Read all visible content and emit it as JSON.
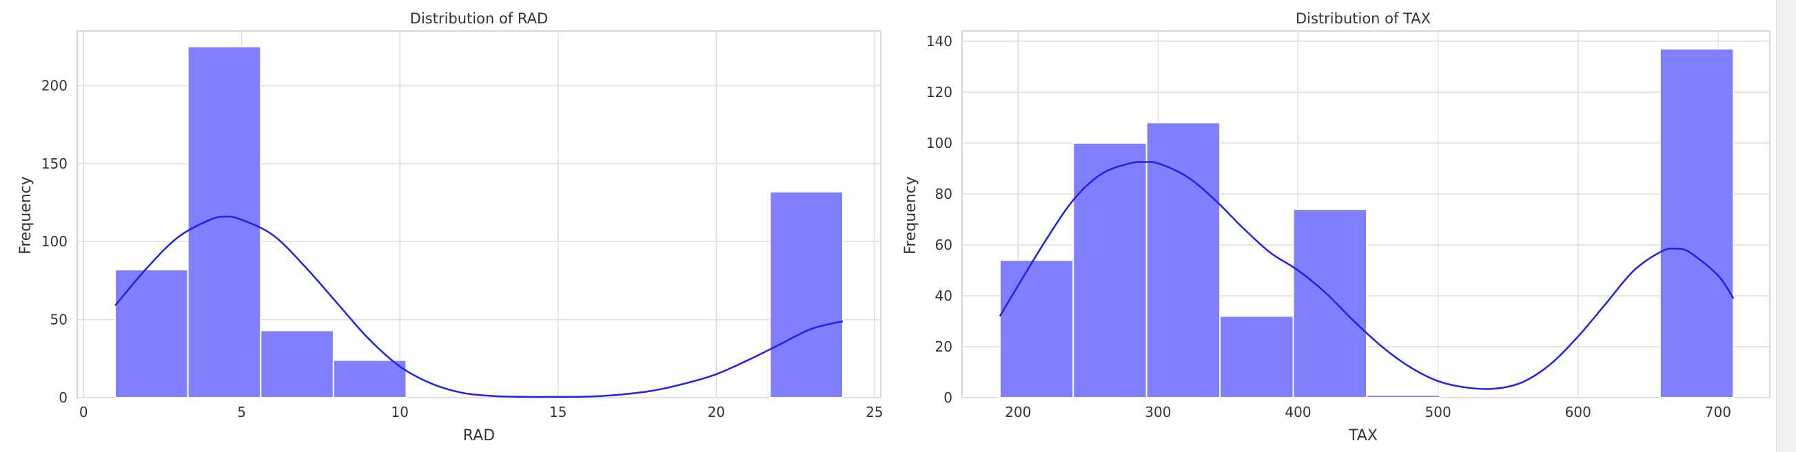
{
  "chart_data": [
    {
      "type": "bar",
      "subtype": "histogram with KDE",
      "title": "Distribution of RAD",
      "xlabel": "RAD",
      "ylabel": "Frequency",
      "xlim": [
        -0.2,
        25.2
      ],
      "ylim": [
        0,
        235
      ],
      "xticks": [
        0,
        5,
        10,
        15,
        20,
        25
      ],
      "yticks": [
        0,
        50,
        100,
        150,
        200
      ],
      "grid": true,
      "bar_color": "#7f7fff",
      "kde_color": "#2020ee",
      "bins": [
        {
          "x0": 1.0,
          "x1": 3.3,
          "count": 82
        },
        {
          "x0": 3.3,
          "x1": 5.6,
          "count": 225
        },
        {
          "x0": 5.6,
          "x1": 7.9,
          "count": 43
        },
        {
          "x0": 7.9,
          "x1": 10.2,
          "count": 24
        },
        {
          "x0": 10.2,
          "x1": 12.5,
          "count": 0
        },
        {
          "x0": 12.5,
          "x1": 14.8,
          "count": 0
        },
        {
          "x0": 14.8,
          "x1": 17.1,
          "count": 0
        },
        {
          "x0": 17.1,
          "x1": 19.4,
          "count": 0
        },
        {
          "x0": 19.4,
          "x1": 21.7,
          "count": 0
        },
        {
          "x0": 21.7,
          "x1": 24.0,
          "count": 132
        }
      ],
      "kde": {
        "x": [
          1,
          2,
          3,
          4,
          4.5,
          5,
          6,
          7,
          8,
          9,
          10,
          11,
          12,
          13,
          14,
          15,
          16,
          17,
          18,
          19,
          20,
          21,
          22,
          23,
          24
        ],
        "y": [
          59,
          83,
          103,
          114,
          116,
          114,
          104,
          84,
          61,
          38,
          20,
          9,
          3,
          1,
          0.5,
          0.5,
          0.7,
          2,
          4.5,
          9,
          15,
          24,
          34,
          44,
          49
        ]
      }
    },
    {
      "type": "bar",
      "subtype": "histogram with KDE",
      "title": "Distribution of TAX",
      "xlabel": "TAX",
      "ylabel": "Frequency",
      "xlim": [
        160,
        737
      ],
      "ylim": [
        0,
        144
      ],
      "xticks": [
        200,
        300,
        400,
        500,
        600,
        700
      ],
      "yticks": [
        0,
        20,
        40,
        60,
        80,
        100,
        120,
        140
      ],
      "grid": true,
      "bar_color": "#7f7fff",
      "kde_color": "#2020ee",
      "bins": [
        {
          "x0": 187.0,
          "x1": 239.4,
          "count": 54
        },
        {
          "x0": 239.4,
          "x1": 291.8,
          "count": 100
        },
        {
          "x0": 291.8,
          "x1": 344.2,
          "count": 108
        },
        {
          "x0": 344.2,
          "x1": 396.6,
          "count": 32
        },
        {
          "x0": 396.6,
          "x1": 449.0,
          "count": 74
        },
        {
          "x0": 449.0,
          "x1": 501.4,
          "count": 1
        },
        {
          "x0": 501.4,
          "x1": 553.8,
          "count": 0
        },
        {
          "x0": 553.8,
          "x1": 606.2,
          "count": 0
        },
        {
          "x0": 606.2,
          "x1": 658.6,
          "count": 0
        },
        {
          "x0": 658.6,
          "x1": 711.0,
          "count": 137
        }
      ],
      "kde": {
        "x": [
          187,
          200,
          220,
          240,
          260,
          280,
          290,
          300,
          320,
          340,
          360,
          380,
          400,
          420,
          440,
          460,
          480,
          500,
          520,
          540,
          560,
          580,
          600,
          620,
          640,
          660,
          670,
          680,
          700,
          711
        ],
        "y": [
          32,
          44,
          62,
          78,
          88,
          92,
          92.5,
          92,
          87,
          78,
          67,
          57,
          50,
          41,
          30,
          20,
          12,
          6.5,
          4,
          3.5,
          6,
          13,
          24,
          37,
          50,
          57.5,
          58.5,
          57,
          48,
          39
        ]
      }
    }
  ]
}
